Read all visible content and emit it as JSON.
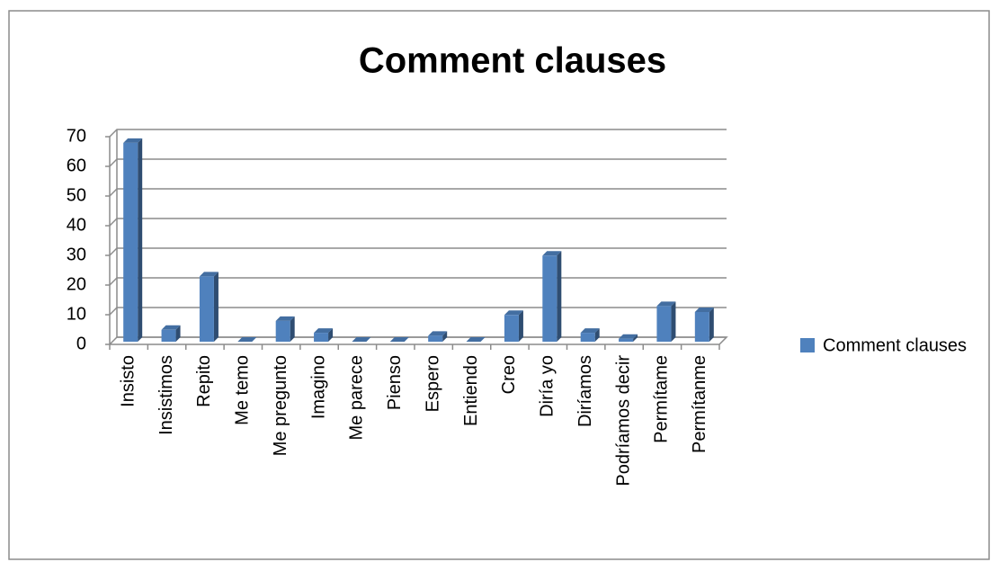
{
  "chart_data": {
    "type": "bar",
    "title": "Comment clauses",
    "categories": [
      "Insisto",
      "Insistimos",
      "Repito",
      "Me temo",
      "Me pregunto",
      "Imagino",
      "Me parece",
      "Pienso",
      "Espero",
      "Entiendo",
      "Creo",
      "Diría yo",
      "Diríamos",
      "Podríamos decir",
      "Permítame",
      "Permítanme"
    ],
    "series": [
      {
        "name": "Comment clauses",
        "color": "#4f81bd",
        "values": [
          67,
          4,
          22,
          0,
          7,
          3,
          0,
          0,
          2,
          0,
          9,
          29,
          3,
          1,
          12,
          10
        ]
      }
    ],
    "ylim": [
      0,
      70
    ],
    "yticks": [
      0,
      10,
      20,
      30,
      40,
      50,
      60,
      70
    ],
    "grid": true,
    "legend": "right"
  }
}
